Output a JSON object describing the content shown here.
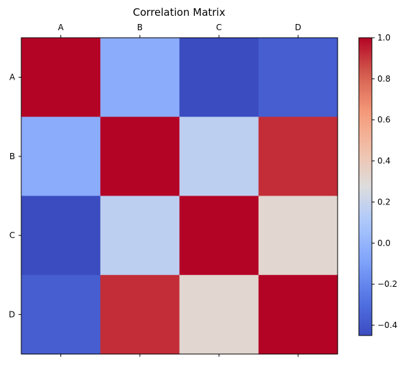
{
  "chart_data": {
    "type": "heatmap",
    "title": "Correlation Matrix",
    "x_labels": [
      "A",
      "B",
      "C",
      "D"
    ],
    "y_labels": [
      "A",
      "B",
      "C",
      "D"
    ],
    "values": [
      [
        1.0,
        -0.04,
        -0.45,
        -0.37
      ],
      [
        -0.04,
        1.0,
        0.16,
        0.92
      ],
      [
        -0.45,
        0.16,
        1.0,
        0.32
      ],
      [
        -0.37,
        0.92,
        0.32,
        1.0
      ]
    ],
    "colormap": "coolwarm",
    "vmin": -0.45,
    "vmax": 1.0,
    "colorbar": {
      "ticks": [
        1.0,
        0.8,
        0.6,
        0.4,
        0.2,
        0.0,
        -0.2,
        -0.4
      ],
      "tick_labels": [
        "1.0",
        "0.8",
        "0.6",
        "0.4",
        "0.2",
        "0.0",
        "−0.2",
        "−0.4"
      ]
    },
    "grid": false,
    "x_ticks_position": "top"
  }
}
